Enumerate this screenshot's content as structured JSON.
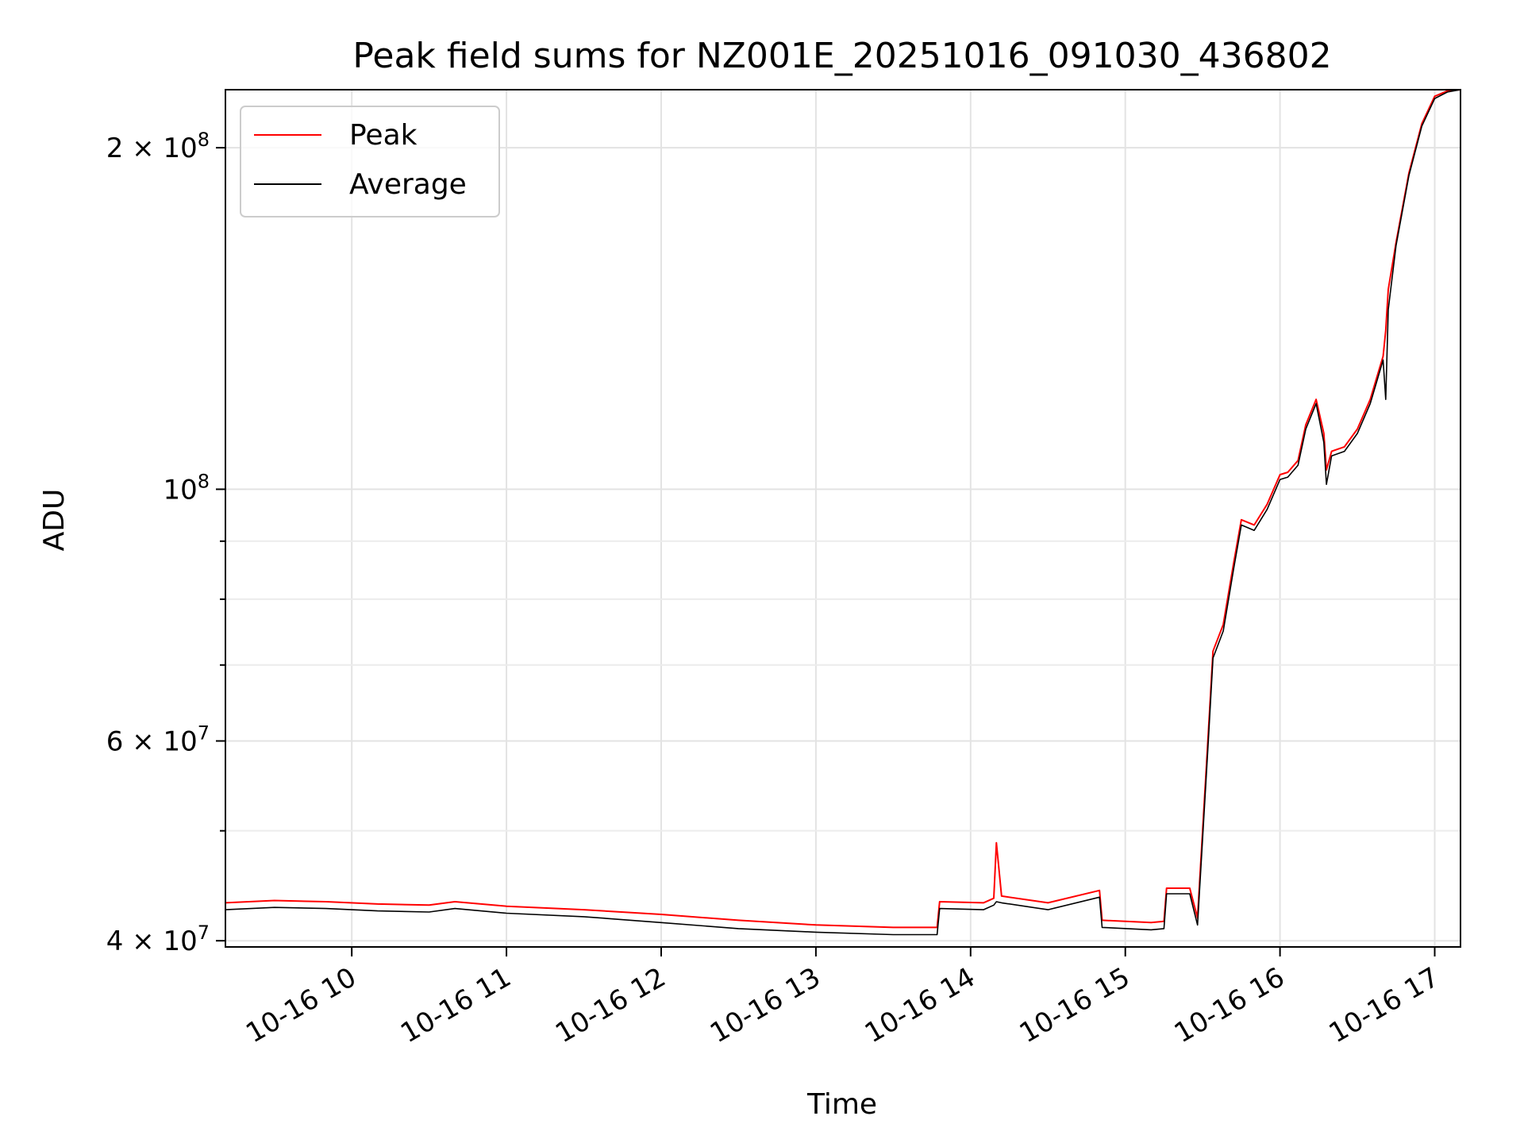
{
  "chart_data": {
    "type": "line",
    "title": "Peak field sums for NZ001E_20251016_091030_436802",
    "xlabel": "Time",
    "ylabel": "ADU",
    "yscale": "log",
    "ylim": [
      39500000,
      225000000
    ],
    "xlim": [
      "2025-10-16 09:11",
      "2025-10-16 17:10"
    ],
    "grid": true,
    "legend": {
      "placement": "top-left",
      "entries": [
        "Peak",
        "Average"
      ]
    },
    "x_ticks": [
      {
        "value": "2025-10-16 10:00",
        "label": "10-16 10"
      },
      {
        "value": "2025-10-16 11:00",
        "label": "10-16 11"
      },
      {
        "value": "2025-10-16 12:00",
        "label": "10-16 12"
      },
      {
        "value": "2025-10-16 13:00",
        "label": "10-16 13"
      },
      {
        "value": "2025-10-16 14:00",
        "label": "10-16 14"
      },
      {
        "value": "2025-10-16 15:00",
        "label": "10-16 15"
      },
      {
        "value": "2025-10-16 16:00",
        "label": "10-16 16"
      },
      {
        "value": "2025-10-16 17:00",
        "label": "10-16 17"
      }
    ],
    "y_major_ticks": [
      {
        "value": 40000000,
        "mantissa": "4",
        "exponent": "7"
      },
      {
        "value": 60000000,
        "mantissa": "6",
        "exponent": "7"
      },
      {
        "value": 100000000,
        "mantissa": "",
        "exponent": "8"
      },
      {
        "value": 200000000,
        "mantissa": "2",
        "exponent": "8"
      }
    ],
    "y_minor_ticks": [
      50000000,
      70000000,
      80000000,
      90000000
    ],
    "series": [
      {
        "name": "Peak",
        "color": "#ff0000",
        "x": [
          "2025-10-16 09:11",
          "2025-10-16 09:30",
          "2025-10-16 09:50",
          "2025-10-16 10:10",
          "2025-10-16 10:30",
          "2025-10-16 10:40",
          "2025-10-16 11:00",
          "2025-10-16 11:30",
          "2025-10-16 12:00",
          "2025-10-16 12:30",
          "2025-10-16 13:00",
          "2025-10-16 13:30",
          "2025-10-16 13:47",
          "2025-10-16 13:48",
          "2025-10-16 14:05",
          "2025-10-16 14:09",
          "2025-10-16 14:10",
          "2025-10-16 14:12",
          "2025-10-16 14:30",
          "2025-10-16 14:50",
          "2025-10-16 14:51",
          "2025-10-16 15:10",
          "2025-10-16 15:15",
          "2025-10-16 15:16",
          "2025-10-16 15:25",
          "2025-10-16 15:28",
          "2025-10-16 15:32",
          "2025-10-16 15:34",
          "2025-10-16 15:38",
          "2025-10-16 15:42",
          "2025-10-16 15:45",
          "2025-10-16 15:50",
          "2025-10-16 15:55",
          "2025-10-16 16:00",
          "2025-10-16 16:03",
          "2025-10-16 16:07",
          "2025-10-16 16:10",
          "2025-10-16 16:14",
          "2025-10-16 16:17",
          "2025-10-16 16:18",
          "2025-10-16 16:20",
          "2025-10-16 16:25",
          "2025-10-16 16:30",
          "2025-10-16 16:35",
          "2025-10-16 16:40",
          "2025-10-16 16:41",
          "2025-10-16 16:42",
          "2025-10-16 16:45",
          "2025-10-16 16:50",
          "2025-10-16 16:55",
          "2025-10-16 17:00",
          "2025-10-16 17:05",
          "2025-10-16 17:10"
        ],
        "y": [
          43200000,
          43400000,
          43300000,
          43100000,
          43000000,
          43300000,
          42900000,
          42600000,
          42200000,
          41700000,
          41300000,
          41100000,
          41100000,
          43300000,
          43200000,
          43600000,
          48800000,
          43800000,
          43200000,
          44300000,
          41700000,
          41500000,
          41600000,
          44500000,
          44500000,
          41900000,
          60000000,
          72000000,
          76000000,
          86000000,
          94000000,
          93000000,
          97000000,
          103000000,
          103500000,
          106000000,
          114000000,
          120000000,
          112000000,
          104000000,
          108000000,
          109000000,
          113000000,
          120000000,
          131000000,
          138000000,
          150000000,
          165000000,
          190000000,
          210000000,
          222000000,
          224500000,
          225000000
        ]
      },
      {
        "name": "Average",
        "color": "#000000",
        "x": [
          "2025-10-16 09:11",
          "2025-10-16 09:30",
          "2025-10-16 09:50",
          "2025-10-16 10:10",
          "2025-10-16 10:30",
          "2025-10-16 10:40",
          "2025-10-16 11:00",
          "2025-10-16 11:30",
          "2025-10-16 12:00",
          "2025-10-16 12:30",
          "2025-10-16 13:00",
          "2025-10-16 13:30",
          "2025-10-16 13:47",
          "2025-10-16 13:48",
          "2025-10-16 14:05",
          "2025-10-16 14:09",
          "2025-10-16 14:10",
          "2025-10-16 14:12",
          "2025-10-16 14:30",
          "2025-10-16 14:50",
          "2025-10-16 14:51",
          "2025-10-16 15:10",
          "2025-10-16 15:15",
          "2025-10-16 15:16",
          "2025-10-16 15:25",
          "2025-10-16 15:28",
          "2025-10-16 15:32",
          "2025-10-16 15:34",
          "2025-10-16 15:38",
          "2025-10-16 15:42",
          "2025-10-16 15:45",
          "2025-10-16 15:50",
          "2025-10-16 15:55",
          "2025-10-16 16:00",
          "2025-10-16 16:03",
          "2025-10-16 16:07",
          "2025-10-16 16:10",
          "2025-10-16 16:14",
          "2025-10-16 16:17",
          "2025-10-16 16:18",
          "2025-10-16 16:20",
          "2025-10-16 16:25",
          "2025-10-16 16:30",
          "2025-10-16 16:35",
          "2025-10-16 16:40",
          "2025-10-16 16:41",
          "2025-10-16 16:42",
          "2025-10-16 16:45",
          "2025-10-16 16:50",
          "2025-10-16 16:55",
          "2025-10-16 17:00",
          "2025-10-16 17:05",
          "2025-10-16 17:10"
        ],
        "y": [
          42600000,
          42800000,
          42700000,
          42500000,
          42400000,
          42700000,
          42300000,
          42000000,
          41500000,
          41000000,
          40700000,
          40500000,
          40500000,
          42700000,
          42600000,
          43000000,
          43300000,
          43200000,
          42600000,
          43700000,
          41100000,
          40900000,
          41000000,
          44000000,
          44000000,
          41300000,
          59000000,
          71000000,
          75000000,
          85000000,
          93000000,
          92000000,
          96000000,
          102000000,
          102500000,
          105000000,
          113000000,
          119000000,
          110000000,
          101000000,
          107000000,
          108000000,
          112000000,
          119000000,
          130000000,
          120000000,
          144000000,
          164000000,
          189000000,
          209000000,
          221000000,
          224000000,
          225000000
        ]
      }
    ]
  }
}
